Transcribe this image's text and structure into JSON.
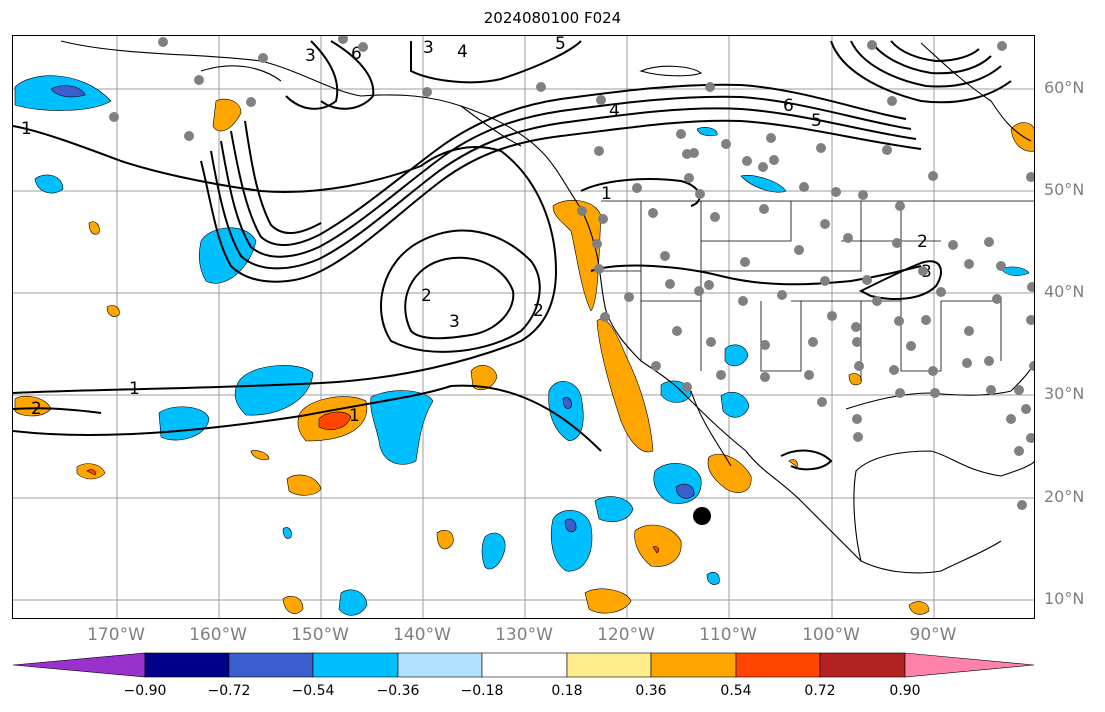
{
  "title": "2024080100 F024",
  "lat_labels": [
    "60°N",
    "50°N",
    "40°N",
    "30°N",
    "20°N",
    "10°N"
  ],
  "lon_labels": [
    "170°W",
    "160°W",
    "150°W",
    "140°W",
    "130°W",
    "120°W",
    "110°W",
    "100°W",
    "90°W"
  ],
  "colorbar": {
    "ticks": [
      "−0.90",
      "−0.72",
      "−0.54",
      "−0.36",
      "−0.18",
      "0.18",
      "0.36",
      "0.54",
      "0.72",
      "0.90"
    ],
    "colors": [
      "#9932cc",
      "#00008b",
      "#3a5fcd",
      "#00bfff",
      "#b0e2ff",
      "#ffffff",
      "#ffec8b",
      "#ffa500",
      "#ff4500",
      "#b22222",
      "#ff82ab"
    ]
  },
  "contour_labels": [
    "1",
    "1",
    "1",
    "1",
    "2",
    "2",
    "2",
    "2",
    "3",
    "3",
    "3",
    "3",
    "4",
    "4",
    "5",
    "5",
    "6",
    "6"
  ],
  "marker": "black-dot"
}
